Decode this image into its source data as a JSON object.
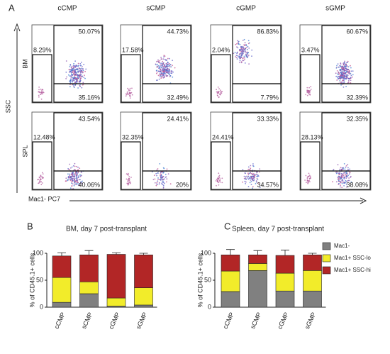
{
  "panel_labels": [
    "A",
    "B",
    "C"
  ],
  "flow": {
    "columns": [
      "cCMP",
      "sCMP",
      "cGMP",
      "sGMP"
    ],
    "y_label": "SSC",
    "x_label": "Mac1- PC7",
    "rows": [
      {
        "label": "BM",
        "gates": [
          {
            "left": "8.29%",
            "upper": "50.07%",
            "lower": "35.16%"
          },
          {
            "left": "17.58%",
            "upper": "44.73%",
            "lower": "32.49%"
          },
          {
            "left": "2.04%",
            "upper": "86.83%",
            "lower": "7.79%"
          },
          {
            "left": "3.47%",
            "upper": "60.67%",
            "lower": "32.39%"
          }
        ]
      },
      {
        "label": "SPL",
        "gates": [
          {
            "left": "12.48%",
            "upper": "43.54%",
            "lower": "40.06%"
          },
          {
            "left": "32.35%",
            "upper": "24.41%",
            "lower": "20%"
          },
          {
            "left": "24.41%",
            "upper": "33.33%",
            "lower": "34.57%"
          },
          {
            "left": "28.13%",
            "upper": "32.35%",
            "lower": "38.08%"
          }
        ]
      }
    ]
  },
  "chart_data": [
    {
      "type": "bar",
      "stacked": true,
      "title": "BM, day 7 post-transplant",
      "y_label": "% of CD45.1+ cells",
      "categories": [
        "cCMP",
        "sCMP",
        "cGMP",
        "sGMP"
      ],
      "ylim": [
        0,
        100
      ],
      "yticks": [
        0,
        50,
        100
      ],
      "series": [
        {
          "name": "Mac1-",
          "color": "#808080",
          "values": [
            9,
            25,
            2,
            4
          ],
          "errors": [
            2,
            12,
            1,
            1
          ]
        },
        {
          "name": "Mac1+ SSC-lo",
          "color": "#f2ec2a",
          "values": [
            46,
            22,
            15,
            32
          ],
          "errors": [
            5,
            5,
            4,
            3
          ]
        },
        {
          "name": "Mac1+ SSC-hi",
          "color": "#b22626",
          "values": [
            40,
            50,
            81,
            61
          ],
          "errors": [
            6,
            8,
            3,
            3
          ]
        }
      ]
    },
    {
      "type": "bar",
      "stacked": true,
      "title": "Spleen, day 7 post-transplant",
      "y_label": "% of CD45.1+ cells",
      "legend": "upper right",
      "categories": [
        "cCMP",
        "sCMP",
        "cGMP",
        "sGMP"
      ],
      "ylim": [
        0,
        100
      ],
      "yticks": [
        0,
        50,
        100
      ],
      "series": [
        {
          "name": "Mac1-",
          "color": "#808080",
          "values": [
            29,
            68,
            30,
            30
          ],
          "errors": [
            18,
            4,
            17,
            2
          ]
        },
        {
          "name": "Mac1+ SSC-lo",
          "color": "#f2ec2a",
          "values": [
            38,
            13,
            33,
            38
          ],
          "errors": [
            10,
            6,
            9,
            5
          ]
        },
        {
          "name": "Mac1+ SSC-hi",
          "color": "#b22626",
          "values": [
            30,
            16,
            33,
            29
          ],
          "errors": [
            10,
            8,
            10,
            3
          ]
        }
      ]
    }
  ]
}
